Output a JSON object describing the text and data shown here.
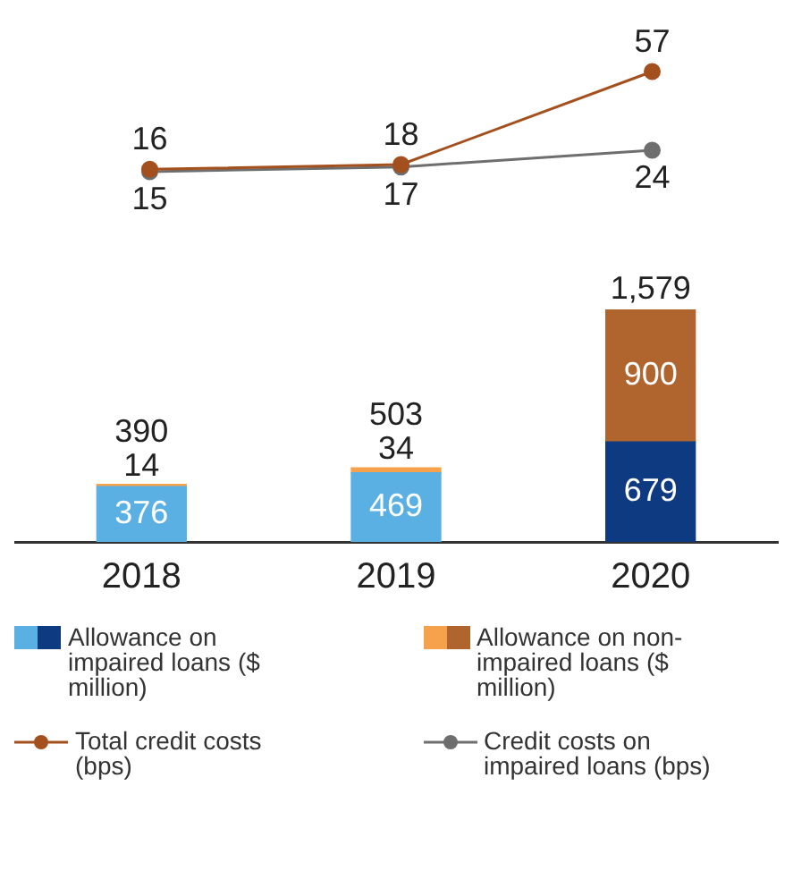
{
  "chart_data": [
    {
      "type": "line",
      "categories": [
        "2018",
        "2019",
        "2020"
      ],
      "data_labels": true,
      "tick_labels": false,
      "grid": false,
      "legend": "bottom",
      "marker": "circle",
      "line_style": "solid",
      "series": [
        {
          "name": "Total credit costs (bps)",
          "color": "#a4501e",
          "values": [
            16,
            18,
            57
          ]
        },
        {
          "name": "Credit costs on impaired loans (bps)",
          "color": "#6e6e6e",
          "values": [
            15,
            17,
            24
          ]
        }
      ]
    },
    {
      "type": "bar",
      "categories": [
        "2018",
        "2019",
        "2020"
      ],
      "stacked": true,
      "data_labels": true,
      "totals": [
        "390",
        "503",
        "1,579"
      ],
      "tick_labels": "x",
      "grid": false,
      "legend": "bottom",
      "series": [
        {
          "name": "Allowance on impaired loans ($ million)",
          "colors": [
            "#5ab0e2",
            "#5ab0e2",
            "#0e3a82"
          ],
          "values": [
            376,
            469,
            679
          ]
        },
        {
          "name": "Allowance on non-impaired loans ($ million)",
          "colors": [
            "#f6a24c",
            "#f6a24c",
            "#b0652f"
          ],
          "values": [
            14,
            34,
            900
          ]
        }
      ]
    }
  ]
}
